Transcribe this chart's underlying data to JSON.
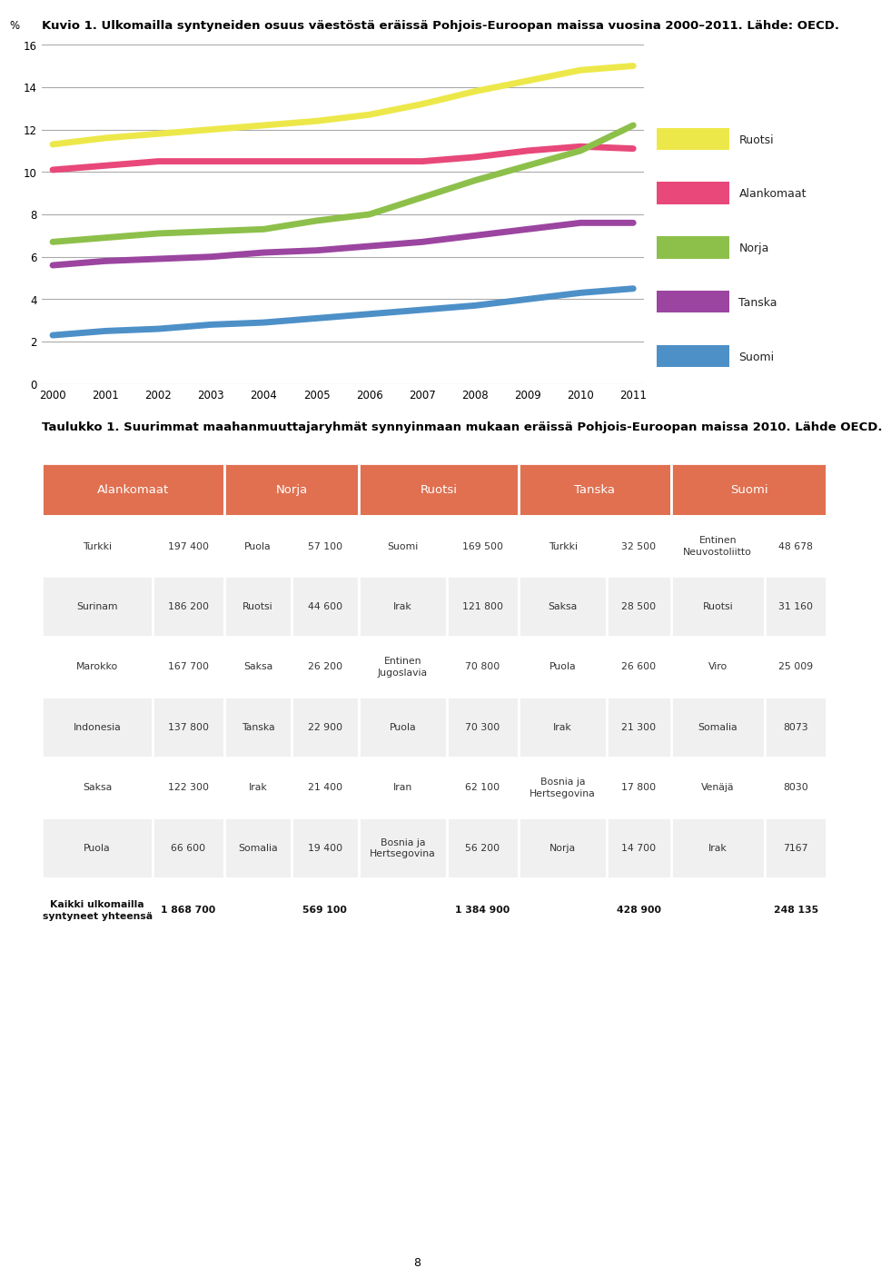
{
  "chart_title": "Kuvio 1. Ulkomailla syntyneiden osuus väestöstä eräissä Pohjois-Euroopan maissa vuosina 2000–2011. Lähde: OECD.",
  "table_title": "Taulukko 1. Suurimmat maahanmuuttajaryhmät synnyinmaan mukaan eräissä Pohjois-Euroopan maissa 2010. Lähde OECD.",
  "years": [
    2000,
    2001,
    2002,
    2003,
    2004,
    2005,
    2006,
    2007,
    2008,
    2009,
    2010,
    2011
  ],
  "lines": {
    "Ruotsi": {
      "color": "#ede84a",
      "values": [
        11.3,
        11.6,
        11.8,
        12.0,
        12.2,
        12.4,
        12.7,
        13.2,
        13.8,
        14.3,
        14.8,
        15.0
      ]
    },
    "Alankomaat": {
      "color": "#e8487a",
      "values": [
        10.1,
        10.3,
        10.5,
        10.5,
        10.5,
        10.5,
        10.5,
        10.5,
        10.7,
        11.0,
        11.2,
        11.1
      ]
    },
    "Norja": {
      "color": "#8dc04a",
      "values": [
        6.7,
        6.9,
        7.1,
        7.2,
        7.3,
        7.7,
        8.0,
        8.8,
        9.6,
        10.3,
        11.0,
        12.2
      ]
    },
    "Tanska": {
      "color": "#9b45a0",
      "values": [
        5.6,
        5.8,
        5.9,
        6.0,
        6.2,
        6.3,
        6.5,
        6.7,
        7.0,
        7.3,
        7.6,
        7.6
      ]
    },
    "Suomi": {
      "color": "#4d90c8",
      "values": [
        2.3,
        2.5,
        2.6,
        2.8,
        2.9,
        3.1,
        3.3,
        3.5,
        3.7,
        4.0,
        4.3,
        4.5
      ]
    }
  },
  "ylim": [
    0,
    16
  ],
  "yticks": [
    0,
    2,
    4,
    6,
    8,
    10,
    12,
    14,
    16
  ],
  "ylabel": "%",
  "line_width": 5,
  "table_header_color": "#e07050",
  "table_header_text_color": "#ffffff",
  "table_alt_row_color": "#f0f0f0",
  "table_row_color": "#ffffff",
  "table_border_color": "#ffffff",
  "table_data": [
    [
      "Turkki",
      "197 400",
      "Puola",
      "57 100",
      "Suomi",
      "169 500",
      "Turkki",
      "32 500",
      "Entinen\nNeuvostoliitto",
      "48 678"
    ],
    [
      "Surinam",
      "186 200",
      "Ruotsi",
      "44 600",
      "Irak",
      "121 800",
      "Saksa",
      "28 500",
      "Ruotsi",
      "31 160"
    ],
    [
      "Marokko",
      "167 700",
      "Saksa",
      "26 200",
      "Entinen\nJugoslavia",
      "70 800",
      "Puola",
      "26 600",
      "Viro",
      "25 009"
    ],
    [
      "Indonesia",
      "137 800",
      "Tanska",
      "22 900",
      "Puola",
      "70 300",
      "Irak",
      "21 300",
      "Somalia",
      "8073"
    ],
    [
      "Saksa",
      "122 300",
      "Irak",
      "21 400",
      "Iran",
      "62 100",
      "Bosnia ja\nHertsegovina",
      "17 800",
      "Venäjä",
      "8030"
    ],
    [
      "Puola",
      "66 600",
      "Somalia",
      "19 400",
      "Bosnia ja\nHertsegovina",
      "56 200",
      "Norja",
      "14 700",
      "Irak",
      "7167"
    ]
  ],
  "table_footer_label": "Kaikki ulkomailla\nsyntyneet yhteensä",
  "table_footer_values": [
    "1 868 700",
    "569 100",
    "1 384 900",
    "428 900",
    "248 135"
  ],
  "page_number": "8",
  "background_color": "#ffffff",
  "header_groups": [
    [
      0,
      2,
      "Alankomaat"
    ],
    [
      2,
      4,
      "Norja"
    ],
    [
      4,
      6,
      "Ruotsi"
    ],
    [
      6,
      8,
      "Tanska"
    ],
    [
      8,
      10,
      "Suomi"
    ]
  ],
  "col_widths": [
    0.135,
    0.088,
    0.082,
    0.082,
    0.108,
    0.088,
    0.108,
    0.078,
    0.115,
    0.076
  ]
}
